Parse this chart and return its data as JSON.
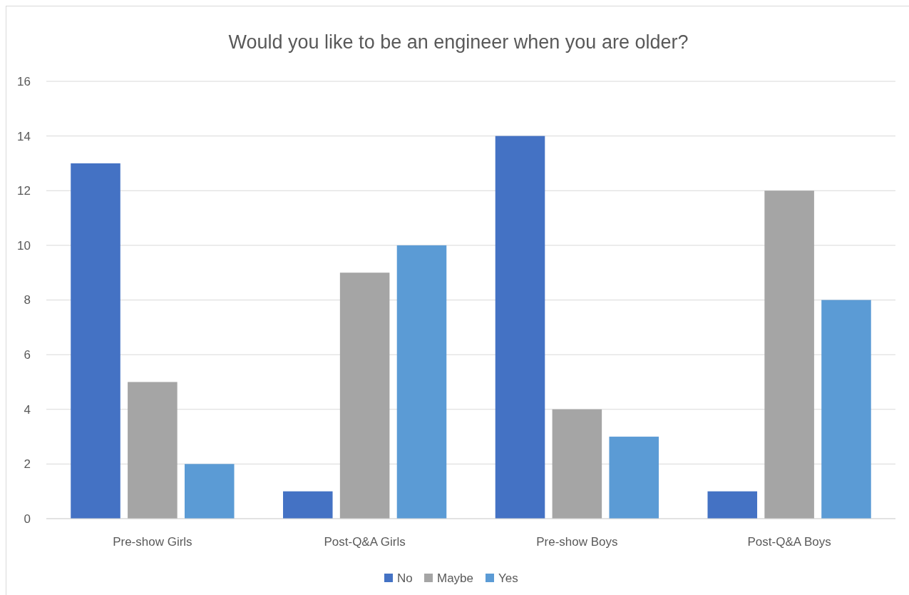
{
  "chart_data": {
    "type": "bar",
    "title": "Would you like to be an engineer when you are older?",
    "categories": [
      "Pre-show Girls",
      "Post-Q&A Girls",
      "Pre-show Boys",
      "Post-Q&A Boys"
    ],
    "series": [
      {
        "name": "No",
        "color": "#4472c4",
        "values": [
          13,
          1,
          14,
          1
        ]
      },
      {
        "name": "Maybe",
        "color": "#a5a5a5",
        "values": [
          5,
          9,
          4,
          12
        ]
      },
      {
        "name": "Yes",
        "color": "#5b9bd5",
        "values": [
          2,
          10,
          3,
          8
        ]
      }
    ],
    "ylim": [
      0,
      16
    ],
    "yticks": [
      0,
      2,
      4,
      6,
      8,
      10,
      12,
      14,
      16
    ],
    "grid": "y",
    "legend": "bottom"
  }
}
